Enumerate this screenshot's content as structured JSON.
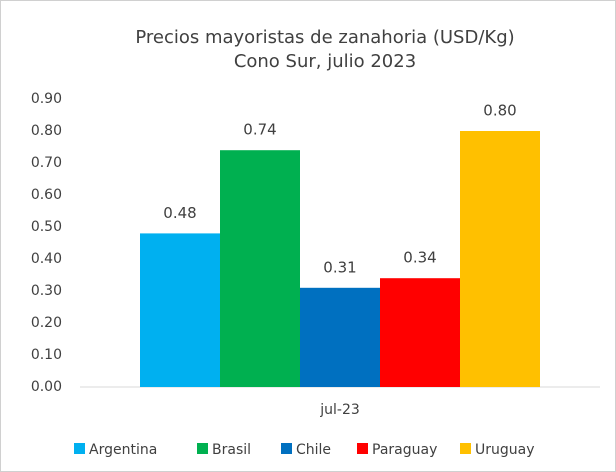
{
  "chart_data": {
    "type": "bar",
    "title": "Precios mayoristas de zanahoria (USD/Kg)",
    "subtitle": "Cono Sur, julio  2023",
    "categories": [
      "jul-23"
    ],
    "series": [
      {
        "name": "Argentina",
        "color": "#00b0f0",
        "values": [
          0.48
        ],
        "value_labels": [
          "0.48"
        ]
      },
      {
        "name": "Brasil",
        "color": "#00b050",
        "values": [
          0.74
        ],
        "value_labels": [
          "0.74"
        ]
      },
      {
        "name": "Chile",
        "color": "#0070c0",
        "values": [
          0.31
        ],
        "value_labels": [
          "0.31"
        ]
      },
      {
        "name": "Paraguay",
        "color": "#ff0000",
        "values": [
          0.34
        ],
        "value_labels": [
          "0.34"
        ]
      },
      {
        "name": "Uruguay",
        "color": "#ffc000",
        "values": [
          0.8
        ],
        "value_labels": [
          "0.80"
        ]
      }
    ],
    "ylim": [
      0,
      0.9
    ],
    "yticks": [
      {
        "value": 0,
        "label": "0.00"
      },
      {
        "value": 0.1,
        "label": "0.10"
      },
      {
        "value": 0.2,
        "label": "0.20"
      },
      {
        "value": 0.3,
        "label": "0.30"
      },
      {
        "value": 0.4,
        "label": "0.40"
      },
      {
        "value": 0.5,
        "label": "0.50"
      },
      {
        "value": 0.6,
        "label": "0.60"
      },
      {
        "value": 0.7,
        "label": "0.70"
      },
      {
        "value": 0.8,
        "label": "0.80"
      },
      {
        "value": 0.9,
        "label": "0.90"
      }
    ],
    "grid": false,
    "legend": "bottom"
  }
}
